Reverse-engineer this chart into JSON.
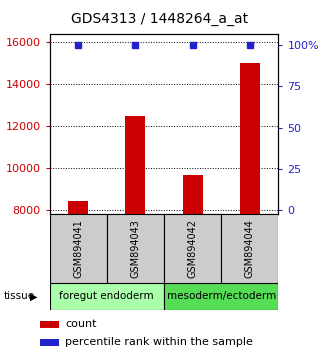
{
  "title": "GDS4313 / 1448264_a_at",
  "samples": [
    "GSM894041",
    "GSM894043",
    "GSM894042",
    "GSM894044"
  ],
  "count_values": [
    8450,
    12500,
    9650,
    15000
  ],
  "percentile_values": [
    100,
    100,
    100,
    100
  ],
  "ylim_left": [
    7800,
    16400
  ],
  "ylim_right": [
    -2.5,
    107
  ],
  "yticks_left": [
    8000,
    10000,
    12000,
    14000,
    16000
  ],
  "yticks_right": [
    0,
    25,
    50,
    75,
    100
  ],
  "ytick_labels_right": [
    "0",
    "25",
    "50",
    "75",
    "100%"
  ],
  "bar_color": "#cc0000",
  "percentile_color": "#2222cc",
  "bar_width": 0.35,
  "tissue_groups": [
    {
      "label": "foregut endoderm",
      "samples": [
        0,
        1
      ],
      "color": "#aaffaa"
    },
    {
      "label": "mesoderm/ectoderm",
      "samples": [
        2,
        3
      ],
      "color": "#55dd55"
    }
  ],
  "tissue_label": "tissue",
  "legend_count_label": "count",
  "legend_percentile_label": "percentile rank within the sample",
  "sample_box_color": "#cccccc",
  "title_fontsize": 10,
  "tick_fontsize": 8,
  "sample_fontsize": 7,
  "tissue_fontsize": 7.5,
  "legend_fontsize": 8
}
